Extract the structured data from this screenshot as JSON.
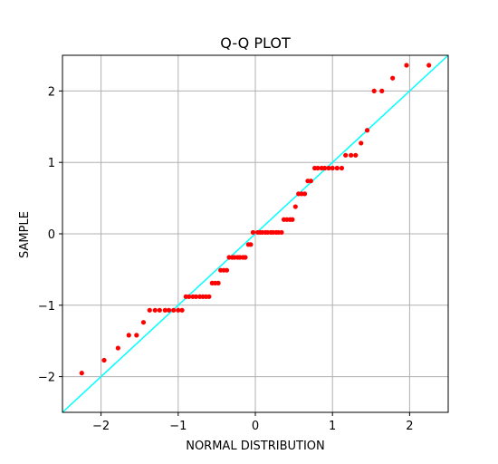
{
  "chart_data": {
    "type": "scatter",
    "title": "Q-Q PLOT",
    "xlabel": "NORMAL DISTRIBUTION",
    "ylabel": "SAMPLE",
    "xlim": [
      -2.5,
      2.5
    ],
    "ylim": [
      -2.5,
      2.5
    ],
    "x_ticks": [
      -2,
      -1,
      0,
      1,
      2
    ],
    "y_ticks": [
      -2,
      -1,
      0,
      1,
      2
    ],
    "x_tick_labels": [
      "−2",
      "−1",
      "0",
      "1",
      "2"
    ],
    "y_tick_labels": [
      "−2",
      "−1",
      "0",
      "1",
      "2"
    ],
    "grid": true,
    "reference_line": {
      "x": [
        -2.5,
        2.5
      ],
      "y": [
        -2.5,
        2.5
      ],
      "color": "#00ffff"
    },
    "marker_color": "#ff0000",
    "points": [
      {
        "x": -2.25,
        "y": -1.95
      },
      {
        "x": -1.96,
        "y": -1.77
      },
      {
        "x": -1.78,
        "y": -1.6
      },
      {
        "x": -1.64,
        "y": -1.42
      },
      {
        "x": -1.54,
        "y": -1.42
      },
      {
        "x": -1.45,
        "y": -1.24
      },
      {
        "x": -1.37,
        "y": -1.07
      },
      {
        "x": -1.3,
        "y": -1.07
      },
      {
        "x": -1.24,
        "y": -1.07
      },
      {
        "x": -1.17,
        "y": -1.07
      },
      {
        "x": -1.12,
        "y": -1.07
      },
      {
        "x": -1.06,
        "y": -1.07
      },
      {
        "x": -1.0,
        "y": -1.07
      },
      {
        "x": -0.95,
        "y": -1.07
      },
      {
        "x": -0.9,
        "y": -0.88
      },
      {
        "x": -0.86,
        "y": -0.88
      },
      {
        "x": -0.81,
        "y": -0.88
      },
      {
        "x": -0.77,
        "y": -0.88
      },
      {
        "x": -0.72,
        "y": -0.88
      },
      {
        "x": -0.68,
        "y": -0.88
      },
      {
        "x": -0.64,
        "y": -0.88
      },
      {
        "x": -0.6,
        "y": -0.88
      },
      {
        "x": -0.56,
        "y": -0.69
      },
      {
        "x": -0.52,
        "y": -0.69
      },
      {
        "x": -0.48,
        "y": -0.69
      },
      {
        "x": -0.45,
        "y": -0.51
      },
      {
        "x": -0.41,
        "y": -0.51
      },
      {
        "x": -0.37,
        "y": -0.51
      },
      {
        "x": -0.34,
        "y": -0.33
      },
      {
        "x": -0.3,
        "y": -0.33
      },
      {
        "x": -0.27,
        "y": -0.33
      },
      {
        "x": -0.23,
        "y": -0.33
      },
      {
        "x": -0.2,
        "y": -0.33
      },
      {
        "x": -0.16,
        "y": -0.33
      },
      {
        "x": -0.13,
        "y": -0.33
      },
      {
        "x": -0.09,
        "y": -0.15
      },
      {
        "x": -0.06,
        "y": -0.15
      },
      {
        "x": -0.03,
        "y": 0.02
      },
      {
        "x": 0.03,
        "y": 0.02
      },
      {
        "x": 0.06,
        "y": 0.02
      },
      {
        "x": 0.09,
        "y": 0.02
      },
      {
        "x": 0.13,
        "y": 0.02
      },
      {
        "x": 0.16,
        "y": 0.02
      },
      {
        "x": 0.2,
        "y": 0.02
      },
      {
        "x": 0.23,
        "y": 0.02
      },
      {
        "x": 0.27,
        "y": 0.02
      },
      {
        "x": 0.3,
        "y": 0.02
      },
      {
        "x": 0.34,
        "y": 0.02
      },
      {
        "x": 0.37,
        "y": 0.2
      },
      {
        "x": 0.41,
        "y": 0.2
      },
      {
        "x": 0.45,
        "y": 0.2
      },
      {
        "x": 0.48,
        "y": 0.2
      },
      {
        "x": 0.52,
        "y": 0.38
      },
      {
        "x": 0.56,
        "y": 0.56
      },
      {
        "x": 0.6,
        "y": 0.56
      },
      {
        "x": 0.64,
        "y": 0.56
      },
      {
        "x": 0.68,
        "y": 0.74
      },
      {
        "x": 0.72,
        "y": 0.74
      },
      {
        "x": 0.77,
        "y": 0.92
      },
      {
        "x": 0.81,
        "y": 0.92
      },
      {
        "x": 0.86,
        "y": 0.92
      },
      {
        "x": 0.9,
        "y": 0.92
      },
      {
        "x": 0.95,
        "y": 0.92
      },
      {
        "x": 1.0,
        "y": 0.92
      },
      {
        "x": 1.06,
        "y": 0.92
      },
      {
        "x": 1.12,
        "y": 0.92
      },
      {
        "x": 1.17,
        "y": 1.1
      },
      {
        "x": 1.24,
        "y": 1.1
      },
      {
        "x": 1.3,
        "y": 1.1
      },
      {
        "x": 1.37,
        "y": 1.27
      },
      {
        "x": 1.45,
        "y": 1.45
      },
      {
        "x": 1.54,
        "y": 2.0
      },
      {
        "x": 1.64,
        "y": 2.0
      },
      {
        "x": 1.78,
        "y": 2.18
      },
      {
        "x": 1.96,
        "y": 2.36
      },
      {
        "x": 2.25,
        "y": 2.36
      }
    ]
  }
}
